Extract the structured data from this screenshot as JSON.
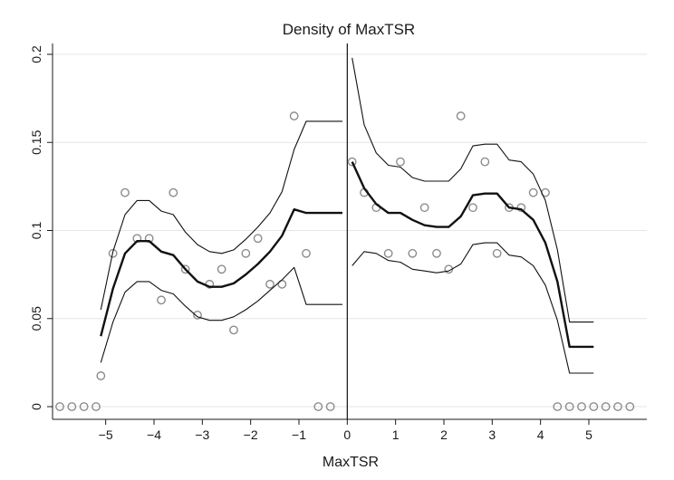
{
  "chart_data": {
    "type": "scatter",
    "title": "Density of MaxTSR",
    "xlabel": "MaxTSR",
    "ylabel": "",
    "xlim": [
      -6.1,
      6.2
    ],
    "ylim": [
      0,
      0.2
    ],
    "x_ticks": [
      -5,
      -4,
      -3,
      -2,
      -1,
      0,
      1,
      2,
      3,
      4,
      5
    ],
    "y_ticks": [
      0,
      0.05,
      0.1,
      0.15,
      0.2
    ],
    "y_tick_labels": [
      "0",
      "0.05",
      "0.1",
      "0.15",
      "0.2"
    ],
    "grid": true,
    "cutoff": 0,
    "colors": {
      "points": "#8c8c8c",
      "fit": "#111111",
      "ci": "#111111",
      "grid": "#e6e6e6"
    },
    "series": [
      {
        "kind": "points",
        "x": [
          -5.95,
          -5.7,
          -5.45,
          -5.2,
          -5.1,
          -4.85,
          -4.6,
          -4.35,
          -4.1,
          -3.85,
          -3.6,
          -3.35,
          -3.1,
          -2.85,
          -2.6,
          -2.35,
          -2.1,
          -1.85,
          -1.6,
          -1.35,
          -1.1,
          -0.85,
          -0.6,
          -0.35,
          0.1,
          0.35,
          0.6,
          0.85,
          1.1,
          1.35,
          1.6,
          1.85,
          2.1,
          2.35,
          2.6,
          2.85,
          3.1,
          3.35,
          3.6,
          3.85,
          4.1,
          4.35,
          4.6,
          4.85,
          5.1,
          5.35,
          5.6,
          5.85
        ],
        "y": [
          0,
          0,
          0,
          0,
          0.0175,
          0.087,
          0.1215,
          0.0955,
          0.0955,
          0.0605,
          0.1215,
          0.078,
          0.052,
          0.0695,
          0.078,
          0.0435,
          0.087,
          0.0955,
          0.0695,
          0.0695,
          0.165,
          0.087,
          0,
          0,
          0.139,
          0.1215,
          0.113,
          0.087,
          0.139,
          0.087,
          0.113,
          0.087,
          0.078,
          0.165,
          0.113,
          0.139,
          0.087,
          0.113,
          0.113,
          0.1215,
          0.1215,
          0,
          0,
          0,
          0,
          0,
          0,
          0
        ]
      },
      {
        "kind": "fit-left",
        "x": [
          -5.1,
          -4.85,
          -4.6,
          -4.35,
          -4.1,
          -3.85,
          -3.6,
          -3.35,
          -3.1,
          -2.85,
          -2.6,
          -2.35,
          -2.1,
          -1.85,
          -1.6,
          -1.35,
          -1.1,
          -0.85,
          -0.6,
          -0.35,
          -0.1
        ],
        "y": [
          0.04,
          0.067,
          0.087,
          0.094,
          0.094,
          0.088,
          0.086,
          0.078,
          0.071,
          0.068,
          0.068,
          0.07,
          0.075,
          0.081,
          0.088,
          0.097,
          0.112,
          0.11,
          0.11,
          0.11,
          0.11
        ]
      },
      {
        "kind": "ci-upper-left",
        "x": [
          -5.1,
          -4.85,
          -4.6,
          -4.35,
          -4.1,
          -3.85,
          -3.6,
          -3.35,
          -3.1,
          -2.85,
          -2.6,
          -2.35,
          -2.1,
          -1.85,
          -1.6,
          -1.35,
          -1.1,
          -0.85,
          -0.6,
          -0.35,
          -0.1
        ],
        "y": [
          0.055,
          0.088,
          0.109,
          0.117,
          0.117,
          0.111,
          0.109,
          0.099,
          0.092,
          0.088,
          0.087,
          0.089,
          0.095,
          0.102,
          0.11,
          0.122,
          0.146,
          0.162,
          0.162,
          0.162,
          0.162
        ]
      },
      {
        "kind": "ci-lower-left",
        "x": [
          -5.1,
          -4.85,
          -4.6,
          -4.35,
          -4.1,
          -3.85,
          -3.6,
          -3.35,
          -3.1,
          -2.85,
          -2.6,
          -2.35,
          -2.1,
          -1.85,
          -1.6,
          -1.35,
          -1.1,
          -0.85,
          -0.6,
          -0.35,
          -0.1
        ],
        "y": [
          0.025,
          0.048,
          0.065,
          0.071,
          0.071,
          0.066,
          0.064,
          0.057,
          0.051,
          0.049,
          0.049,
          0.051,
          0.055,
          0.06,
          0.066,
          0.072,
          0.079,
          0.058,
          0.058,
          0.058,
          0.058
        ]
      },
      {
        "kind": "fit-right",
        "x": [
          0.1,
          0.35,
          0.6,
          0.85,
          1.1,
          1.35,
          1.6,
          1.85,
          2.1,
          2.35,
          2.6,
          2.85,
          3.1,
          3.35,
          3.6,
          3.85,
          4.1,
          4.35,
          4.6,
          4.85,
          5.1
        ],
        "y": [
          0.139,
          0.124,
          0.115,
          0.11,
          0.11,
          0.106,
          0.103,
          0.102,
          0.102,
          0.108,
          0.12,
          0.121,
          0.121,
          0.113,
          0.112,
          0.106,
          0.093,
          0.071,
          0.034,
          0.034,
          0.034
        ]
      },
      {
        "kind": "ci-upper-right",
        "x": [
          0.1,
          0.35,
          0.6,
          0.85,
          1.1,
          1.35,
          1.6,
          1.85,
          2.1,
          2.35,
          2.6,
          2.85,
          3.1,
          3.35,
          3.6,
          3.85,
          4.1,
          4.35,
          4.6,
          4.85,
          5.1
        ],
        "y": [
          0.198,
          0.16,
          0.144,
          0.137,
          0.136,
          0.13,
          0.128,
          0.128,
          0.128,
          0.135,
          0.148,
          0.149,
          0.149,
          0.14,
          0.139,
          0.132,
          0.117,
          0.089,
          0.048,
          0.048,
          0.048
        ]
      },
      {
        "kind": "ci-lower-right",
        "x": [
          0.1,
          0.35,
          0.6,
          0.85,
          1.1,
          1.35,
          1.6,
          1.85,
          2.1,
          2.35,
          2.6,
          2.85,
          3.1,
          3.35,
          3.6,
          3.85,
          4.1,
          4.35,
          4.6,
          4.85,
          5.1
        ],
        "y": [
          0.08,
          0.088,
          0.087,
          0.083,
          0.082,
          0.078,
          0.077,
          0.076,
          0.077,
          0.081,
          0.092,
          0.093,
          0.093,
          0.086,
          0.085,
          0.08,
          0.069,
          0.049,
          0.019,
          0.019,
          0.019
        ]
      }
    ]
  }
}
